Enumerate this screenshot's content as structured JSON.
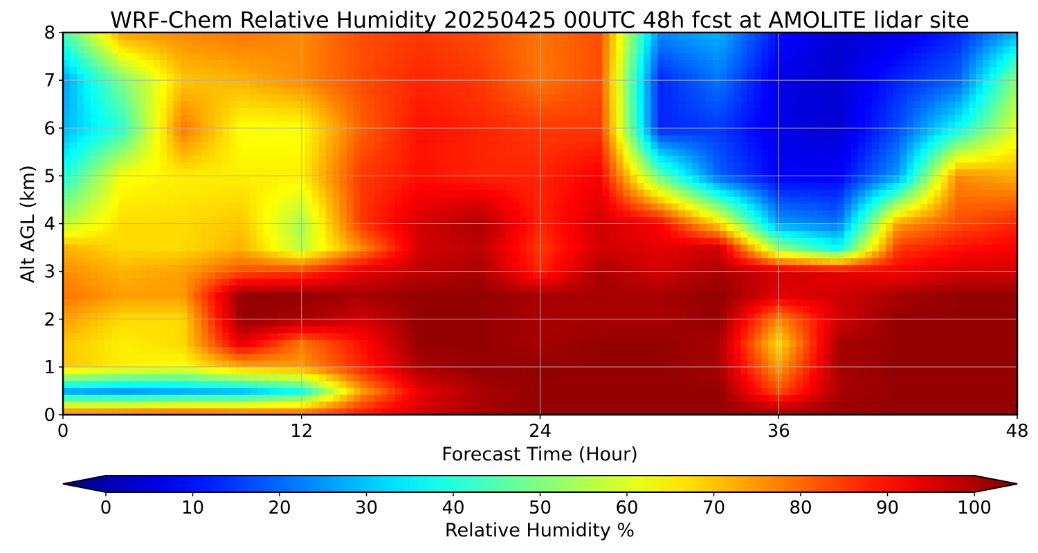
{
  "chart_data": {
    "type": "heatmap",
    "title": "WRF-Chem Relative Humidity 20250425 00UTC 48h fcst at AMOLITE lidar site",
    "xlabel": "Forecast Time (Hour)",
    "ylabel": "Alt AGL (km)",
    "xlim": [
      0,
      48
    ],
    "ylim": [
      0,
      8
    ],
    "xticks": [
      0,
      12,
      24,
      36,
      48
    ],
    "yticks": [
      0,
      1,
      2,
      3,
      4,
      5,
      6,
      7,
      8
    ],
    "grid": true,
    "colormap": "jet",
    "colorbar": {
      "label": "Relative Humidity %",
      "min": 0,
      "max": 100,
      "ticks": [
        0,
        10,
        20,
        30,
        40,
        50,
        60,
        70,
        80,
        90,
        100
      ],
      "extend": "both",
      "orientation": "horizontal"
    },
    "x": [
      0,
      3,
      6,
      9,
      12,
      15,
      18,
      21,
      24,
      27,
      30,
      33,
      36,
      39,
      42,
      45,
      48
    ],
    "y": [
      0,
      0.5,
      1,
      1.5,
      2,
      2.5,
      3,
      3.5,
      4,
      5,
      6,
      7,
      8
    ],
    "z": [
      [
        78,
        80,
        82,
        80,
        80,
        86,
        92,
        96,
        98,
        98,
        98,
        98,
        98,
        98,
        98,
        98,
        98
      ],
      [
        30,
        28,
        30,
        32,
        40,
        72,
        90,
        96,
        98,
        98,
        98,
        98,
        80,
        96,
        98,
        98,
        98
      ],
      [
        68,
        64,
        62,
        70,
        72,
        84,
        96,
        98,
        98,
        98,
        98,
        96,
        72,
        96,
        98,
        98,
        98
      ],
      [
        68,
        64,
        66,
        90,
        76,
        86,
        98,
        98,
        96,
        98,
        98,
        96,
        66,
        96,
        98,
        98,
        98
      ],
      [
        72,
        66,
        66,
        98,
        96,
        92,
        98,
        98,
        96,
        96,
        96,
        98,
        74,
        92,
        98,
        98,
        98
      ],
      [
        76,
        72,
        72,
        98,
        98,
        96,
        98,
        98,
        96,
        96,
        96,
        98,
        90,
        92,
        96,
        98,
        98
      ],
      [
        74,
        70,
        72,
        80,
        82,
        90,
        94,
        96,
        84,
        96,
        92,
        96,
        92,
        90,
        88,
        92,
        92
      ],
      [
        70,
        66,
        66,
        70,
        56,
        74,
        92,
        94,
        82,
        92,
        90,
        92,
        52,
        38,
        82,
        86,
        88
      ],
      [
        56,
        66,
        66,
        68,
        54,
        82,
        92,
        96,
        84,
        92,
        88,
        66,
        28,
        24,
        72,
        80,
        84
      ],
      [
        40,
        62,
        64,
        64,
        64,
        82,
        86,
        84,
        84,
        88,
        48,
        22,
        12,
        12,
        28,
        74,
        70
      ],
      [
        30,
        42,
        76,
        62,
        62,
        78,
        86,
        84,
        82,
        82,
        16,
        18,
        10,
        8,
        20,
        38,
        60
      ],
      [
        28,
        50,
        68,
        70,
        74,
        80,
        84,
        82,
        76,
        80,
        16,
        24,
        10,
        8,
        16,
        22,
        52
      ],
      [
        44,
        72,
        74,
        76,
        74,
        80,
        82,
        80,
        76,
        80,
        26,
        30,
        14,
        8,
        10,
        16,
        30
      ]
    ]
  }
}
